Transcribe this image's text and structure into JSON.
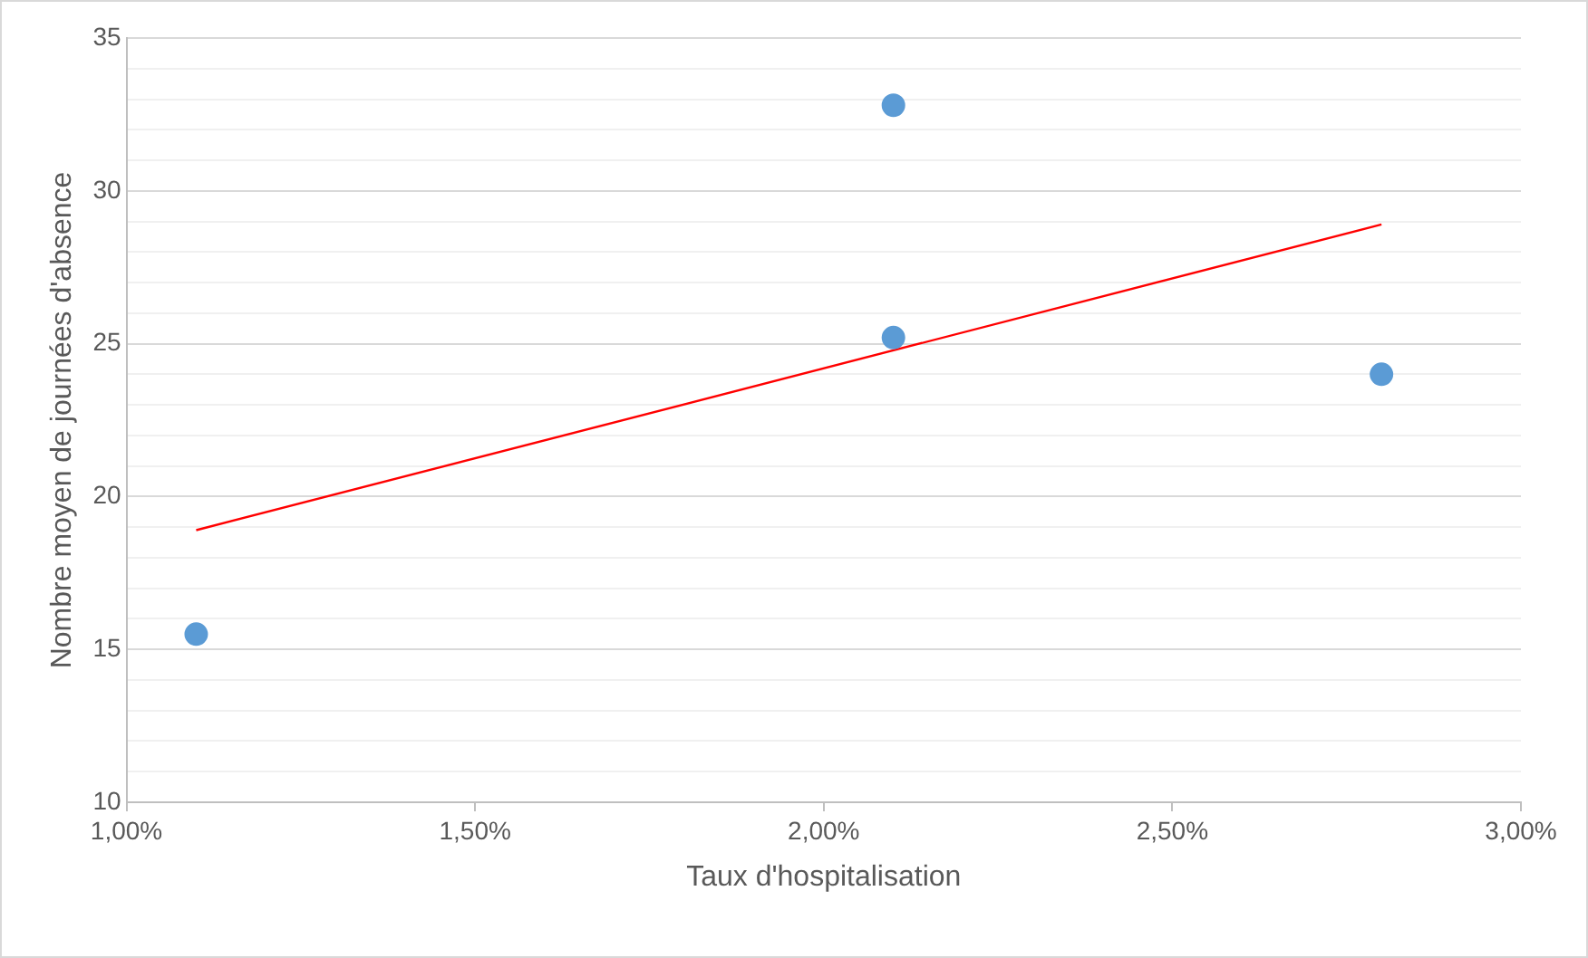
{
  "chart_data": {
    "type": "scatter",
    "xlabel": "Taux d'hospitalisation",
    "ylabel": "Nombre moyen de journées d'absence",
    "xlim": [
      1,
      3
    ],
    "xticks": [
      {
        "value": 1,
        "label": "1,00%"
      },
      {
        "value": 1.5,
        "label": "1,50%"
      },
      {
        "value": 2,
        "label": "2,00%"
      },
      {
        "value": 2.5,
        "label": "2,50%"
      },
      {
        "value": 3,
        "label": "3,00%"
      }
    ],
    "ylim": [
      10,
      35
    ],
    "yticks": [
      10,
      {
        "value": 11,
        "label": null
      },
      {
        "value": 12,
        "label": null
      },
      {
        "value": 13,
        "label": null
      },
      {
        "value": 14,
        "label": null
      },
      15,
      {
        "value": 16,
        "label": null
      },
      {
        "value": 17,
        "label": null
      },
      {
        "value": 18,
        "label": null
      },
      {
        "value": 19,
        "label": null
      },
      20,
      {
        "value": 21,
        "label": null
      },
      {
        "value": 22,
        "label": null
      },
      {
        "value": 23,
        "label": null
      },
      {
        "value": 24,
        "label": null
      },
      25,
      {
        "value": 26,
        "label": null
      },
      {
        "value": 27,
        "label": null
      },
      {
        "value": 28,
        "label": null
      },
      {
        "value": 29,
        "label": null
      },
      30,
      {
        "value": 31,
        "label": null
      },
      {
        "value": 32,
        "label": null
      },
      {
        "value": 33,
        "label": null
      },
      {
        "value": 34,
        "label": null
      },
      35
    ],
    "grid": "y",
    "marker": "circle",
    "series": [
      {
        "color": "#5b9bd5",
        "x": [
          1.1,
          2.1,
          2.1,
          2.8
        ],
        "values": [
          15.5,
          32.8,
          25.2,
          24.0
        ]
      },
      {
        "type": "line",
        "color": "#ff0000",
        "marker": "none",
        "x": [
          1.1,
          2.8
        ],
        "values": [
          18.9,
          28.9
        ]
      }
    ]
  }
}
